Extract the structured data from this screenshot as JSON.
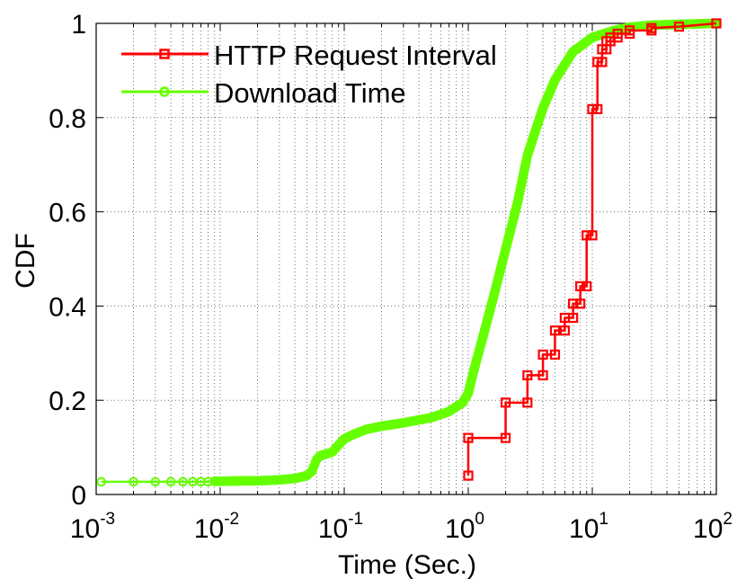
{
  "chart_data": {
    "type": "line",
    "title": "",
    "xlabel": "Time (Sec.)",
    "ylabel": "CDF",
    "xscale": "log",
    "xlim": [
      0.001,
      100
    ],
    "ylim": [
      0,
      1
    ],
    "grid": true,
    "legend_position": "top-left",
    "x_tick_labels": [
      {
        "base": "10",
        "exp": "-3"
      },
      {
        "base": "10",
        "exp": "-2"
      },
      {
        "base": "10",
        "exp": "-1"
      },
      {
        "base": "10",
        "exp": "0"
      },
      {
        "base": "10",
        "exp": "1"
      },
      {
        "base": "10",
        "exp": "2"
      }
    ],
    "y_tick_labels": [
      "0",
      "0.2",
      "0.4",
      "0.6",
      "0.8",
      "1"
    ],
    "series": [
      {
        "name": "HTTP Request Interval",
        "color": "#ff0000",
        "marker": "square",
        "line": "step",
        "points": [
          [
            1.0,
            0.04
          ],
          [
            1.0,
            0.12
          ],
          [
            2.0,
            0.12
          ],
          [
            2.0,
            0.195
          ],
          [
            3.0,
            0.195
          ],
          [
            3.0,
            0.253
          ],
          [
            4.0,
            0.253
          ],
          [
            4.0,
            0.297
          ],
          [
            5.0,
            0.297
          ],
          [
            5.0,
            0.348
          ],
          [
            6.0,
            0.348
          ],
          [
            6.0,
            0.375
          ],
          [
            7.0,
            0.375
          ],
          [
            7.0,
            0.405
          ],
          [
            8.0,
            0.405
          ],
          [
            8.0,
            0.442
          ],
          [
            9.0,
            0.442
          ],
          [
            9.0,
            0.55
          ],
          [
            10.0,
            0.55
          ],
          [
            10.0,
            0.818
          ],
          [
            11.0,
            0.818
          ],
          [
            11.0,
            0.918
          ],
          [
            12.0,
            0.918
          ],
          [
            12.0,
            0.945
          ],
          [
            13.0,
            0.945
          ],
          [
            13.0,
            0.962
          ],
          [
            14.0,
            0.962
          ],
          [
            14.0,
            0.97
          ],
          [
            16.0,
            0.97
          ],
          [
            16.0,
            0.978
          ],
          [
            20.0,
            0.978
          ],
          [
            20.0,
            0.985
          ],
          [
            30.0,
            0.985
          ],
          [
            30.0,
            0.99
          ],
          [
            50.0,
            0.993
          ],
          [
            100.0,
            1.0
          ]
        ]
      },
      {
        "name": "Download Time",
        "color": "#66ff00",
        "marker": "circle",
        "line": "solid",
        "points": [
          [
            0.0011,
            0.027
          ],
          [
            0.002,
            0.027
          ],
          [
            0.003,
            0.027
          ],
          [
            0.004,
            0.027
          ],
          [
            0.005,
            0.027
          ],
          [
            0.006,
            0.027
          ],
          [
            0.007,
            0.027
          ],
          [
            0.008,
            0.027
          ],
          [
            0.009,
            0.028
          ],
          [
            0.01,
            0.028
          ],
          [
            0.015,
            0.029
          ],
          [
            0.02,
            0.029
          ],
          [
            0.03,
            0.031
          ],
          [
            0.04,
            0.034
          ],
          [
            0.05,
            0.04
          ],
          [
            0.055,
            0.05
          ],
          [
            0.06,
            0.075
          ],
          [
            0.065,
            0.083
          ],
          [
            0.07,
            0.085
          ],
          [
            0.08,
            0.09
          ],
          [
            0.09,
            0.105
          ],
          [
            0.1,
            0.118
          ],
          [
            0.12,
            0.128
          ],
          [
            0.15,
            0.138
          ],
          [
            0.2,
            0.145
          ],
          [
            0.3,
            0.152
          ],
          [
            0.5,
            0.163
          ],
          [
            0.7,
            0.176
          ],
          [
            0.9,
            0.195
          ],
          [
            1.0,
            0.215
          ],
          [
            1.1,
            0.26
          ],
          [
            1.3,
            0.33
          ],
          [
            1.6,
            0.42
          ],
          [
            2.0,
            0.52
          ],
          [
            2.5,
            0.62
          ],
          [
            3.0,
            0.72
          ],
          [
            4.0,
            0.82
          ],
          [
            5.0,
            0.88
          ],
          [
            7.0,
            0.94
          ],
          [
            10.0,
            0.97
          ],
          [
            15.0,
            0.985
          ],
          [
            20.0,
            0.992
          ],
          [
            30.0,
            0.996
          ],
          [
            50.0,
            0.998
          ],
          [
            100.0,
            1.0
          ]
        ]
      }
    ]
  }
}
